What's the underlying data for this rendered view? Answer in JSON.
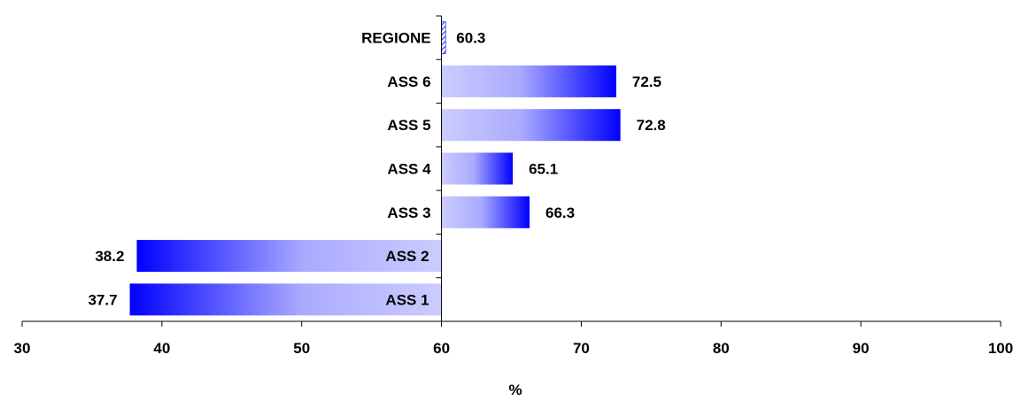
{
  "chart_data": {
    "type": "bar",
    "orientation": "horizontal",
    "baseline": 60,
    "categories": [
      "REGIONE",
      "ASS 6",
      "ASS 5",
      "ASS 4",
      "ASS 3",
      "ASS 2",
      "ASS 1"
    ],
    "values": [
      60.3,
      72.5,
      72.8,
      65.1,
      66.3,
      38.2,
      37.7
    ],
    "value_labels": [
      "60.3",
      "72.5",
      "72.8",
      "65.1",
      "66.3",
      "38.2",
      "37.7"
    ],
    "xlabel": "%",
    "xlim": [
      30,
      100
    ],
    "xticks": [
      "30",
      "40",
      "50",
      "60",
      "70",
      "80",
      "90",
      "100"
    ],
    "grid": false,
    "colors": {
      "bar_dark": "#0000ff",
      "bar_light": "#ccccff",
      "regione_pattern": "#3344ee"
    }
  }
}
